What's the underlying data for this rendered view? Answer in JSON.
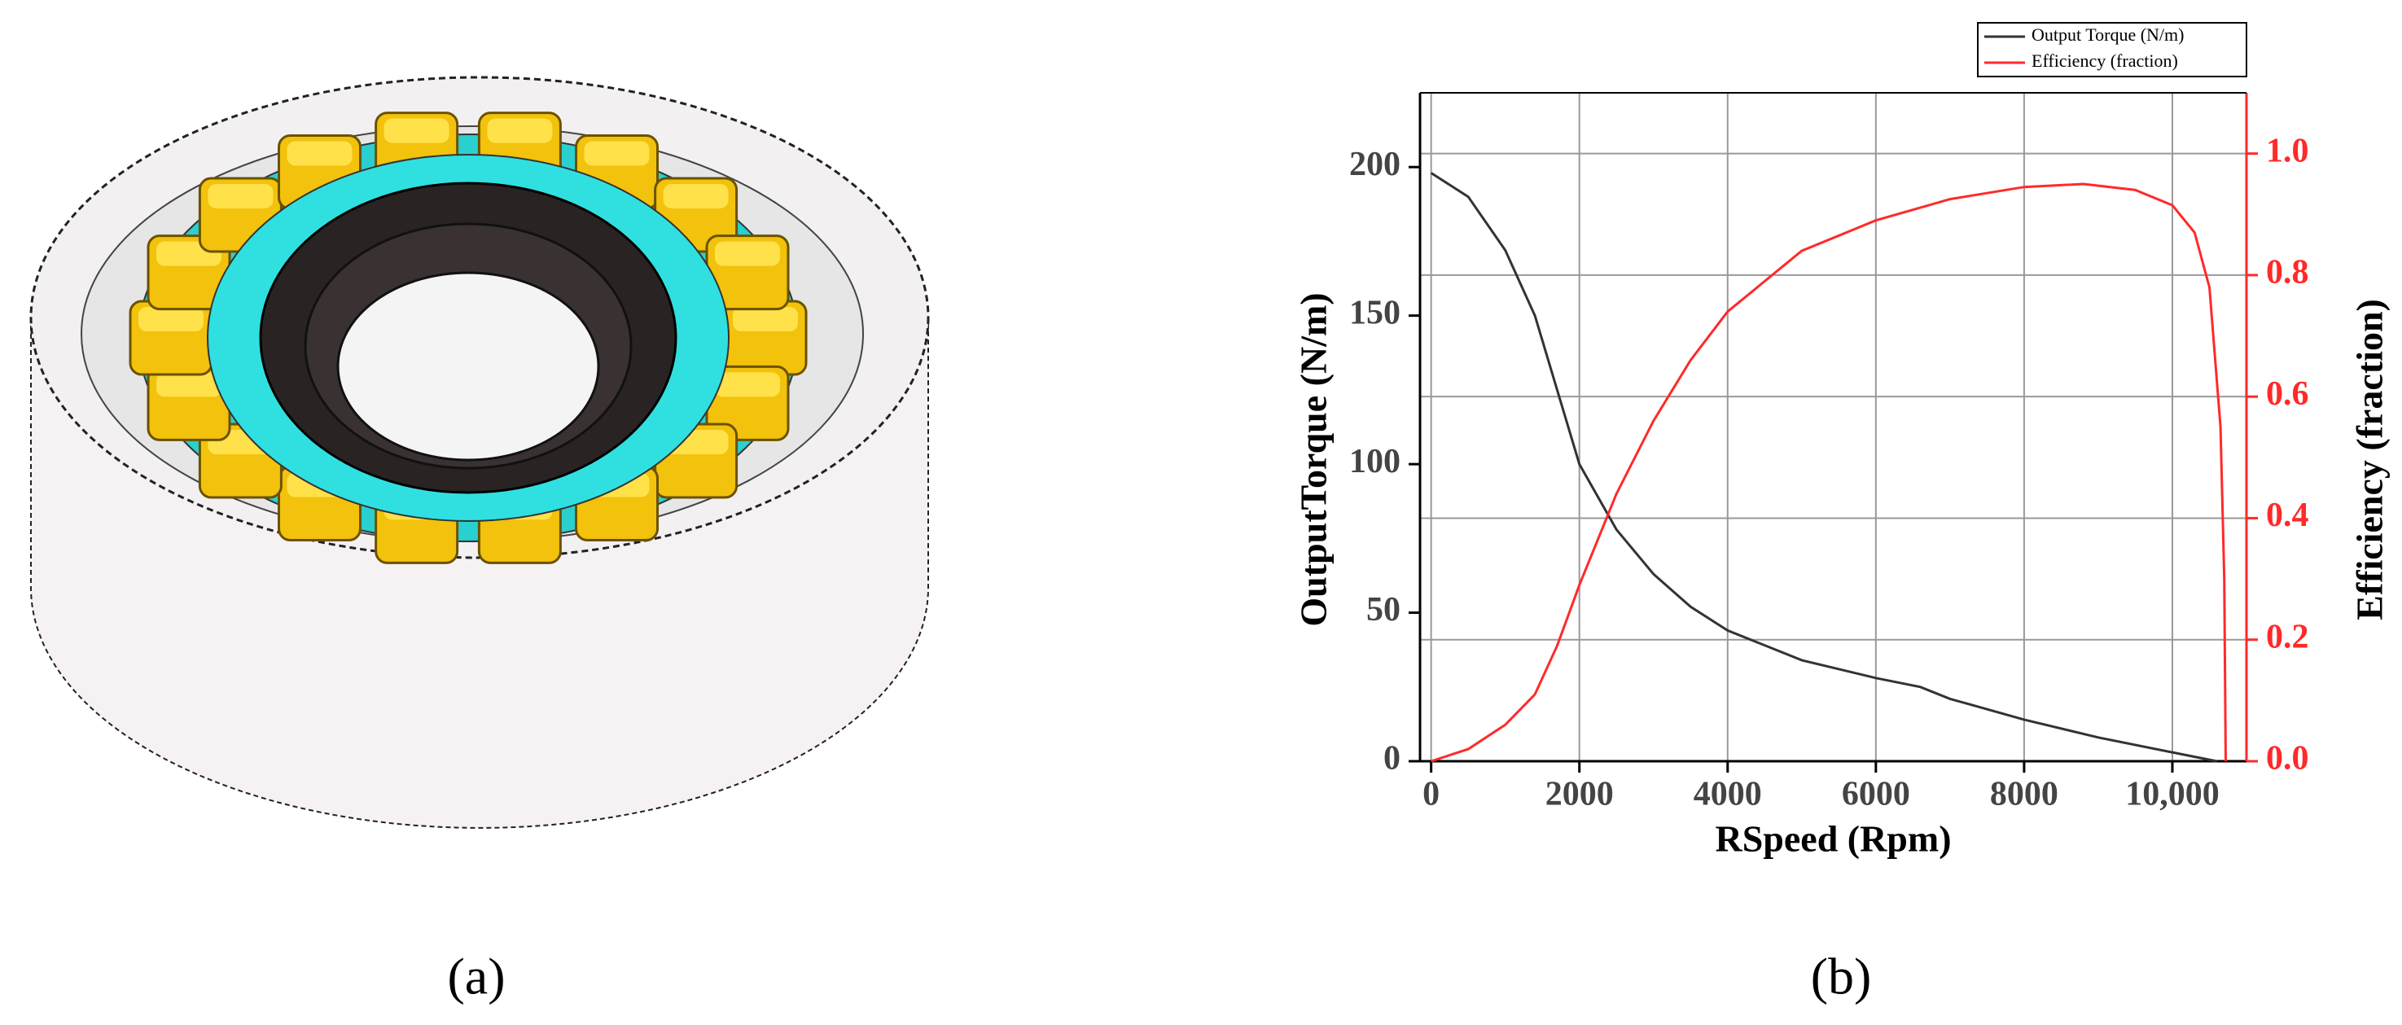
{
  "figure": {
    "panel_labels": [
      "(a)",
      "(b)"
    ]
  },
  "chart_data": {
    "type": "line",
    "xlabel": "RSpeed (Rpm)",
    "ylabel": "OutputTorque  (N/m)",
    "y2label": "Efficiency (fraction)",
    "series": [
      {
        "name": "Output Torque (N/m)",
        "color": "#333333",
        "x": [
          0,
          500,
          1000,
          1400,
          1700,
          2000,
          2500,
          3000,
          3500,
          4000,
          5000,
          6000,
          6600,
          7000,
          8000,
          9000,
          10000,
          10600
        ],
        "values": [
          198,
          190,
          172,
          150,
          125,
          100,
          78,
          63,
          52,
          44,
          34,
          28,
          25,
          21,
          14,
          8,
          3,
          0
        ]
      },
      {
        "name": "Efficiency (fraction)",
        "color": "#ff2a2a",
        "axis": "y2",
        "x": [
          0,
          500,
          1000,
          1400,
          1700,
          2000,
          2500,
          3000,
          3500,
          4000,
          5000,
          6000,
          7000,
          8000,
          8800,
          9500,
          10000,
          10300,
          10500,
          10650,
          10700,
          10720
        ],
        "values": [
          0,
          0.02,
          0.06,
          0.11,
          0.19,
          0.29,
          0.44,
          0.56,
          0.66,
          0.74,
          0.84,
          0.89,
          0.925,
          0.945,
          0.95,
          0.94,
          0.915,
          0.87,
          0.78,
          0.55,
          0.3,
          0
        ]
      }
    ],
    "xlim": [
      -150,
      11000
    ],
    "xticks": [
      0,
      2000,
      4000,
      6000,
      8000,
      {
        "value": 10000,
        "label": "10,000"
      }
    ],
    "ylim": [
      0,
      225
    ],
    "yticks": [
      0,
      50,
      100,
      150,
      200
    ],
    "y2lim": [
      0,
      1.1
    ],
    "y2ticks": [
      {
        "value": 0,
        "label": "0.0"
      },
      0.2,
      0.4,
      0.6,
      0.8,
      {
        "value": 1,
        "label": "1.0"
      }
    ],
    "grid": true,
    "legend": "top-right"
  }
}
